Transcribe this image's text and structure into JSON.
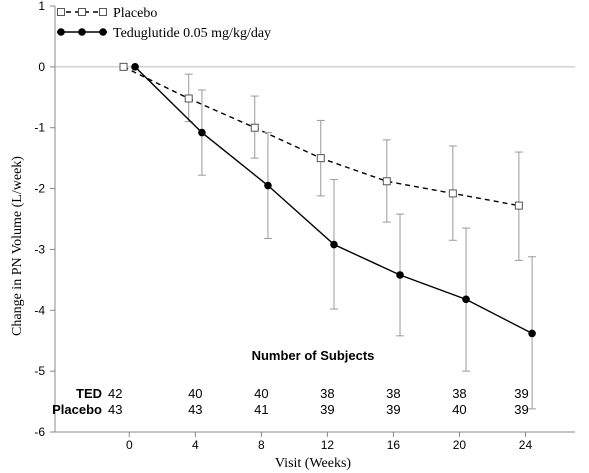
{
  "chart_data": {
    "type": "line",
    "x": [
      0,
      4,
      8,
      12,
      16,
      20,
      24
    ],
    "xlabel": "Visit (Weeks)",
    "ylabel": "Change in PN Volume (L/week)",
    "xlim": [
      -4.5,
      27
    ],
    "ylim": [
      -6,
      1
    ],
    "x_ticks": [
      0,
      4,
      8,
      12,
      16,
      20,
      24
    ],
    "y_ticks": [
      1,
      0,
      -1,
      -2,
      -3,
      -4,
      -5,
      -6
    ],
    "x_tick_labels": [
      "0",
      "4",
      "8",
      "12",
      "16",
      "20",
      "24"
    ],
    "y_tick_labels": [
      "1",
      "0",
      "-1",
      "-2",
      "-3",
      "-4",
      "-5",
      "-6"
    ],
    "reference_line_y": 0,
    "grid": false,
    "legend_position": "top-left",
    "series": [
      {
        "name": "Placebo",
        "style": "dashed",
        "marker": "open-square",
        "color": "#000000",
        "x_offset": -0.4,
        "values": [
          0,
          -0.52,
          -1.0,
          -1.5,
          -1.88,
          -2.08,
          -2.28
        ],
        "err_low": [
          0,
          -0.9,
          -1.5,
          -2.12,
          -2.55,
          -2.85,
          -3.18
        ],
        "err_high": [
          0,
          -0.12,
          -0.48,
          -0.88,
          -1.2,
          -1.3,
          -1.4
        ]
      },
      {
        "name": "Teduglutide 0.05 mg/kg/day",
        "style": "solid",
        "marker": "filled-circle",
        "color": "#000000",
        "x_offset": 0.4,
        "values": [
          0,
          -1.08,
          -1.95,
          -2.92,
          -3.42,
          -3.82,
          -4.38
        ],
        "err_low": [
          0,
          -1.78,
          -2.82,
          -3.98,
          -4.42,
          -5.0,
          -5.62
        ],
        "err_high": [
          0,
          -0.38,
          -1.08,
          -1.85,
          -2.42,
          -2.65,
          -3.12
        ]
      }
    ],
    "subjects": {
      "title": "Number of Subjects",
      "rows": [
        {
          "label": "TED",
          "counts": [
            "42",
            "40",
            "40",
            "38",
            "38",
            "38",
            "39"
          ]
        },
        {
          "label": "Placebo",
          "counts": [
            "43",
            "43",
            "41",
            "39",
            "39",
            "40",
            "39"
          ]
        }
      ]
    },
    "colors": {
      "axis": "#888888",
      "error_bar": "#9a9a9a",
      "line": "#000000",
      "text": "#000000"
    }
  }
}
